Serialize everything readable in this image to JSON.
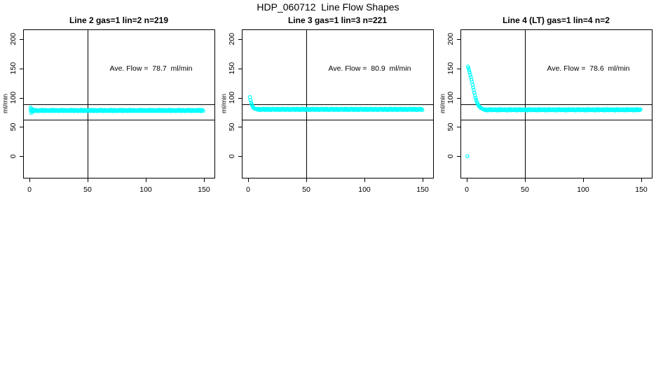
{
  "page": {
    "title": "HDP_060712  Line Flow Shapes"
  },
  "colors": {
    "marker": "#00FFFF",
    "axis": "#000000",
    "background": "#FFFFFF"
  },
  "chart_data": [
    {
      "type": "scatter",
      "title": "Line 2 gas=1 lin=2 n=219",
      "ylabel": "ml/min",
      "xlabel": "",
      "annotation": "Ave. Flow =  78.7  ml/min",
      "ave_flow": 78.7,
      "xticks": [
        0,
        50,
        100,
        150
      ],
      "yticks": [
        0,
        50,
        100,
        150,
        200
      ],
      "xlim": [
        0,
        150
      ],
      "ylim": [
        0,
        200
      ],
      "grid": false,
      "legend": false,
      "vline_x": 50,
      "hlines": [
        89,
        63
      ],
      "transient_points": [
        [
          1,
          83
        ],
        [
          1.5,
          74
        ],
        [
          2,
          81
        ],
        [
          2.5,
          76
        ],
        [
          3,
          79.5
        ]
      ],
      "outlier_points": [],
      "plateau": {
        "x_start": 1,
        "x_end": 150,
        "step": 0.7,
        "y": 78,
        "jitter": [
          0.6,
          -0.9,
          1.3,
          -0.4,
          1.0,
          -1.2,
          0.3,
          1.1,
          -0.7,
          0.5,
          -1.0,
          0.8
        ]
      }
    },
    {
      "type": "scatter",
      "title": "Line 3 gas=1 lin=3 n=221",
      "ylabel": "ml/min",
      "xlabel": "",
      "annotation": "Ave. Flow =  80.9  ml/min",
      "ave_flow": 80.9,
      "xticks": [
        0,
        50,
        100,
        150
      ],
      "yticks": [
        0,
        50,
        100,
        150,
        200
      ],
      "xlim": [
        0,
        150
      ],
      "ylim": [
        0,
        200
      ],
      "grid": false,
      "legend": false,
      "vline_x": 50,
      "hlines": [
        89,
        63
      ],
      "transient_points": [
        [
          1.5,
          101
        ],
        [
          2,
          96
        ],
        [
          2.5,
          92
        ],
        [
          3,
          89
        ],
        [
          3.5,
          86.5
        ],
        [
          4,
          84.5
        ],
        [
          4.5,
          83
        ],
        [
          5,
          82
        ],
        [
          5.5,
          81.5
        ],
        [
          6,
          81
        ],
        [
          7,
          80.5
        ]
      ],
      "outlier_points": [],
      "plateau": {
        "x_start": 7.7,
        "x_end": 150,
        "step": 0.7,
        "y": 80,
        "jitter": [
          0.8,
          -0.6,
          1.1,
          -1.0,
          0.4,
          -1.2,
          0.9,
          -0.3,
          1.2,
          -0.8,
          0.5,
          -1.1
        ]
      }
    },
    {
      "type": "scatter",
      "title": "Line 4 (LT) gas=1 lin=4 n=2",
      "ylabel": "ml/min",
      "xlabel": "",
      "annotation": "Ave. Flow =  78.6  ml/min",
      "ave_flow": 78.6,
      "xticks": [
        0,
        50,
        100,
        150
      ],
      "yticks": [
        0,
        50,
        100,
        150,
        200
      ],
      "xlim": [
        0,
        150
      ],
      "ylim": [
        0,
        200
      ],
      "grid": false,
      "legend": false,
      "vline_x": 50,
      "hlines": [
        89,
        63
      ],
      "transient_points": [
        [
          1,
          153
        ],
        [
          1.5,
          150
        ],
        [
          2,
          146.5
        ],
        [
          2.5,
          143
        ],
        [
          3,
          139
        ],
        [
          3.5,
          135
        ],
        [
          4,
          131
        ],
        [
          4.5,
          126.5
        ],
        [
          5,
          122
        ],
        [
          5.5,
          117.5
        ],
        [
          6,
          113
        ],
        [
          6.5,
          108.5
        ],
        [
          7,
          104
        ],
        [
          7.5,
          100
        ],
        [
          8,
          96.5
        ],
        [
          8.5,
          93.5
        ],
        [
          9,
          91
        ],
        [
          9.5,
          89
        ],
        [
          10,
          87
        ],
        [
          10.5,
          85.5
        ],
        [
          11,
          84.5
        ],
        [
          11.5,
          83.5
        ],
        [
          12,
          82.5
        ],
        [
          12.5,
          82
        ],
        [
          13,
          81.5
        ],
        [
          13.5,
          81
        ],
        [
          14,
          80.5
        ],
        [
          14.5,
          80.2
        ]
      ],
      "outlier_points": [
        [
          0.5,
          0
        ]
      ],
      "plateau": {
        "x_start": 15,
        "x_end": 150,
        "step": 0.7,
        "y": 79.3,
        "jitter": [
          0.7,
          -0.7,
          1.0,
          -1.0,
          0.4,
          -1.1,
          0.9,
          -0.4,
          1.2,
          -0.9,
          0.5,
          -0.6
        ]
      }
    }
  ]
}
